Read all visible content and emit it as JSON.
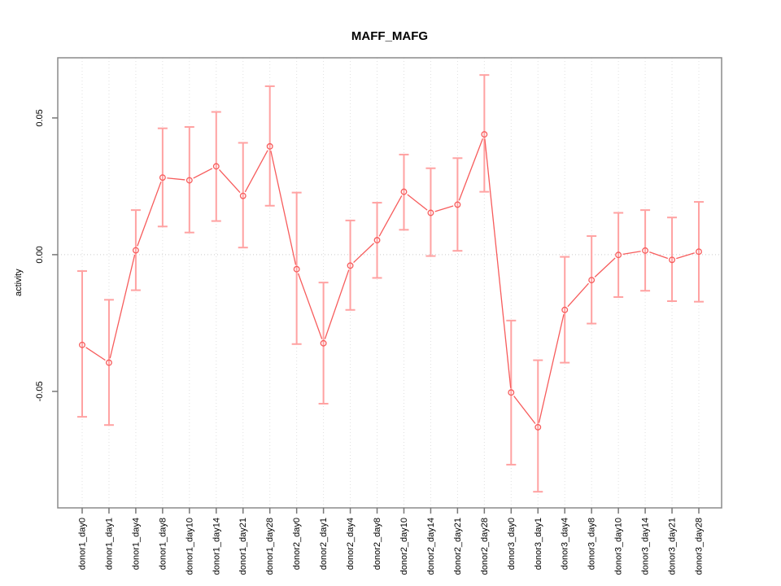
{
  "title": "MAFF_MAFG",
  "chart_data": {
    "type": "line",
    "title": "MAFF_MAFG",
    "xlabel": "",
    "ylabel": "activity",
    "ylim": [
      -0.0926,
      0.072
    ],
    "yticks": [
      {
        "value": 0.05,
        "label": "0.05"
      },
      {
        "value": 0.0,
        "label": "0.00"
      },
      {
        "value": -0.05,
        "label": "-0.05"
      }
    ],
    "zero_reference_line": 0,
    "grid": {
      "vertical": "dotted line at every category tick",
      "horizontal": "dotted line at y=0 only"
    },
    "legend": "none",
    "marker": "open-circle",
    "categories": [
      "donor1_day0",
      "donor1_day1",
      "donor1_day4",
      "donor1_day8",
      "donor1_day10",
      "donor1_day14",
      "donor1_day21",
      "donor1_day28",
      "donor2_day0",
      "donor2_day1",
      "donor2_day4",
      "donor2_day8",
      "donor2_day10",
      "donor2_day14",
      "donor2_day21",
      "donor2_day28",
      "donor3_day0",
      "donor3_day1",
      "donor3_day4",
      "donor3_day8",
      "donor3_day10",
      "donor3_day14",
      "donor3_day21",
      "donor3_day28"
    ],
    "series": [
      {
        "name": "activity",
        "values": [
          -0.033,
          -0.0395,
          0.0016,
          0.0282,
          0.0272,
          0.0323,
          0.0215,
          0.0396,
          -0.0053,
          -0.0324,
          -0.004,
          0.0053,
          0.023,
          0.0153,
          0.0183,
          0.044,
          -0.0504,
          -0.0631,
          -0.0202,
          -0.0093,
          -0.0001,
          0.0015,
          -0.0019,
          0.0011
        ],
        "err_high": [
          -0.006,
          -0.0165,
          0.0163,
          0.0462,
          0.0467,
          0.0522,
          0.0409,
          0.0616,
          0.0227,
          -0.0102,
          0.0125,
          0.019,
          0.0366,
          0.0316,
          0.0353,
          0.0657,
          -0.0241,
          -0.0386,
          -0.0008,
          0.0068,
          0.0153,
          0.0163,
          0.0136,
          0.0193
        ],
        "err_low": [
          -0.0593,
          -0.0623,
          -0.013,
          0.0103,
          0.0081,
          0.0123,
          0.0026,
          0.0179,
          -0.0327,
          -0.0545,
          -0.0202,
          -0.0085,
          0.0091,
          -0.0005,
          0.0014,
          0.023,
          -0.0768,
          -0.0867,
          -0.0395,
          -0.0252,
          -0.0155,
          -0.0132,
          -0.017,
          -0.0172
        ]
      }
    ],
    "colors": {
      "line": "#f75c5c",
      "marker": "#f75c5c",
      "error_bar": "#ffa2a2",
      "grid": "#e0e0e0",
      "zero_line": "#c9c9c9",
      "box": "#8a8a8a",
      "tick": "#777777",
      "text": "#000000",
      "background": "#ffffff"
    }
  }
}
